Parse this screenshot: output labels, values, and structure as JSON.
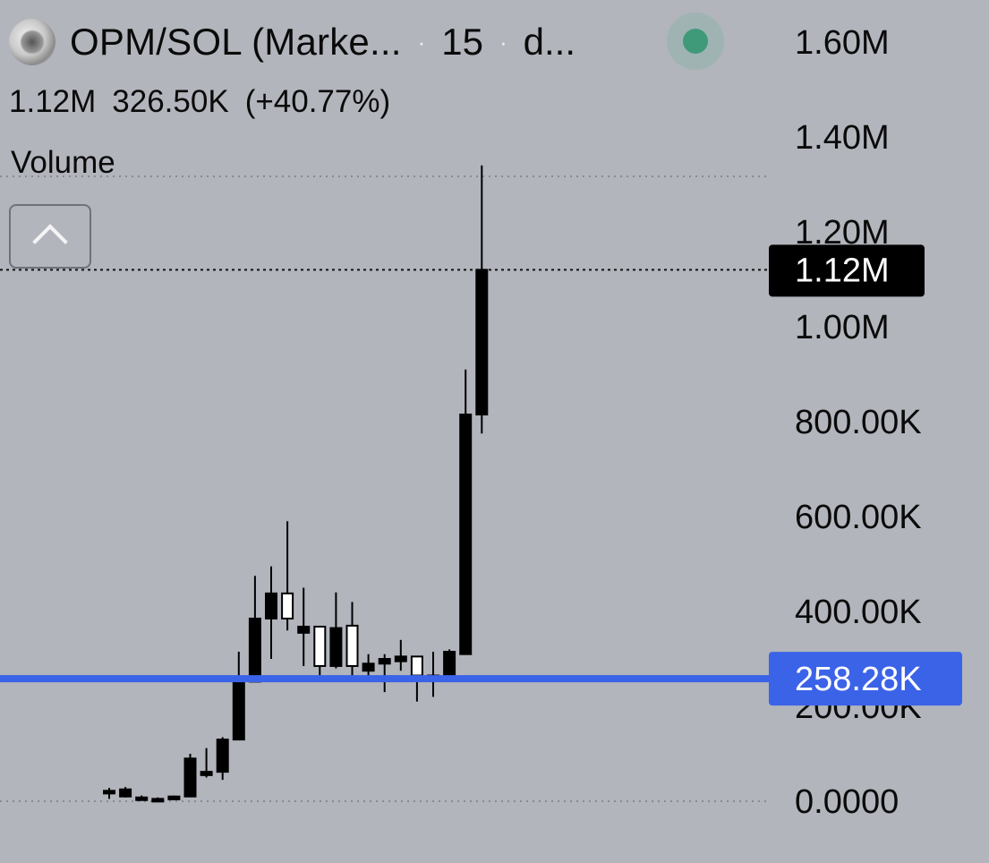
{
  "header": {
    "symbol": "OPM/SOL (Marke...",
    "separator": "·",
    "interval": "15",
    "truncated": "d...",
    "logo_icon": "token-logo-icon",
    "status": "market-open"
  },
  "values": {
    "close": "1.12M",
    "change": "326.50K",
    "change_pct": "(+40.77%)"
  },
  "volume_label": "Volume",
  "collapse_icon": "chevron-up-icon",
  "colors": {
    "background": "#b2b5bc",
    "candle_up_fill": "#ffffff",
    "candle_down_fill": "#000000",
    "price_line": "#3b63e8",
    "last_price_badge": "#000000"
  },
  "chart_data": {
    "type": "candlestick",
    "yaxis": {
      "ticks": [
        0,
        200000,
        400000,
        600000,
        800000,
        1000000,
        1200000,
        1400000,
        1600000
      ],
      "tick_labels": [
        "0.0000",
        "200.00K",
        "400.00K",
        "600.00K",
        "800.00K",
        "1.00M",
        "1.20M",
        "1.40M",
        "1.60M"
      ],
      "ylim": [
        0,
        1640000
      ]
    },
    "last_price": {
      "value": 1120000,
      "label": "1.12M"
    },
    "price_line": {
      "value": 258280,
      "label": "258.28K"
    },
    "candles": [
      {
        "o": 20000,
        "h": 28000,
        "l": 5000,
        "c": 22000
      },
      {
        "o": 25000,
        "h": 30000,
        "l": 8000,
        "c": 10000
      },
      {
        "o": 8000,
        "h": 12000,
        "l": 2000,
        "c": 4000
      },
      {
        "o": 5000,
        "h": 8000,
        "l": 2000,
        "c": 3000
      },
      {
        "o": 4000,
        "h": 12000,
        "l": 3000,
        "c": 10000
      },
      {
        "o": 10000,
        "h": 100000,
        "l": 10000,
        "c": 90000
      },
      {
        "o": 55000,
        "h": 112000,
        "l": 50000,
        "c": 62000
      },
      {
        "o": 62000,
        "h": 135000,
        "l": 45000,
        "c": 130000
      },
      {
        "o": 130000,
        "h": 315000,
        "l": 130000,
        "c": 252000
      },
      {
        "o": 252000,
        "h": 475000,
        "l": 252000,
        "c": 385000
      },
      {
        "o": 385000,
        "h": 495000,
        "l": 300000,
        "c": 438000
      },
      {
        "o": 385000,
        "h": 590000,
        "l": 360000,
        "c": 438000,
        "up": true
      },
      {
        "o": 355000,
        "h": 450000,
        "l": 285000,
        "c": 368000
      },
      {
        "o": 285000,
        "h": 360000,
        "l": 258000,
        "c": 368000,
        "up": true
      },
      {
        "o": 365000,
        "h": 440000,
        "l": 280000,
        "c": 285000
      },
      {
        "o": 285000,
        "h": 420000,
        "l": 260000,
        "c": 370000,
        "up": true
      },
      {
        "o": 290000,
        "h": 310000,
        "l": 260000,
        "c": 275000
      },
      {
        "o": 300000,
        "h": 310000,
        "l": 230000,
        "c": 290000
      },
      {
        "o": 305000,
        "h": 340000,
        "l": 275000,
        "c": 295000
      },
      {
        "o": 265000,
        "h": 305000,
        "l": 210000,
        "c": 305000,
        "up": true
      },
      {
        "o": 265000,
        "h": 315000,
        "l": 220000,
        "c": 265000
      },
      {
        "o": 265000,
        "h": 320000,
        "l": 260000,
        "c": 315000
      },
      {
        "o": 310000,
        "h": 910000,
        "l": 310000,
        "c": 815000
      },
      {
        "o": 815000,
        "h": 1340000,
        "l": 775000,
        "c": 1120000
      }
    ]
  }
}
